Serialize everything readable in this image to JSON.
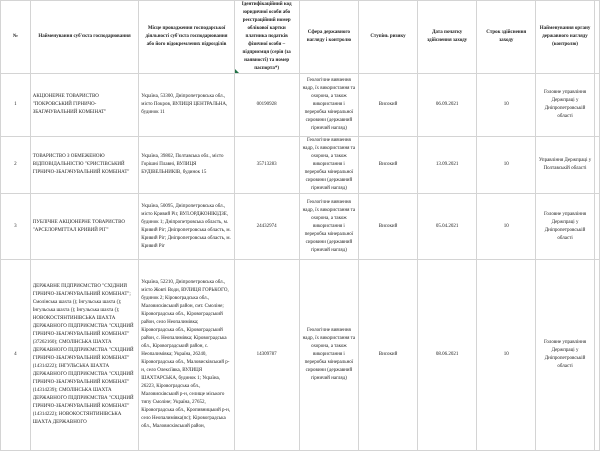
{
  "headers": {
    "num": "№",
    "name": "Найменування суб'єкта господарювання",
    "place": "Місце провадження господарської діяльності суб'єкта господарювання або його відокремлених підрозділів",
    "code": "Ідентифікаційний код юридичної особи або реєстраційний номер облікової картки платника податків фізичної особи – підприємця (серія (за наявності) та номер паспорта*)",
    "sphere": "Сфера державного нагляду і контролю",
    "risk": "Ступінь ризику",
    "date": "Дата початку здійснення заходу",
    "term": "Строк здійснення заходу",
    "authority": "Найменування органу державного нагляду (контролю)"
  },
  "rows": [
    {
      "num": "1",
      "name": "АКЦІОНЕРНЕ ТОВАРИСТВО \"ПОКРОВСЬКИЙ ГІРНИЧО-ЗБАГАЧУВАЛЬНИЙ КОМБІНАТ\"",
      "place": "Україна, 53300, Дніпропетровська обл., місто Покров, ВУЛИЦЯ ЦЕНТРАЛЬНА, будинок 11",
      "code": "00190928",
      "sphere": "Геологічне вивчення надр, їх використання та охорона, а також використання і переробка мінеральної сировини (державний гірничий нагляд)",
      "risk": "Високий",
      "date": "06.09.2021",
      "term": "10",
      "authority": "Головне управління Держпраці у Дніпропетровській області"
    },
    {
      "num": "2",
      "name": "ТОВАРИСТВО З ОБМЕЖЕНОЮ ВІДПОВІДАЛЬНІСТЮ \"ЄРИСТІВСЬКИЙ ГІРНИЧО-ЗБАГАЧУВАЛЬНИЙ КОМБІНАТ\"",
      "place": "Україна, 39802, Полтавська обл., місто Горішні Плавні, ВУЛИЦЯ БУДІВЕЛЬНИКІВ, будинок 15",
      "code": "35713283",
      "sphere": "Геологічне вивчення надр, їх використання та охорона, а також використання і переробка мінеральної сировини (державний гірничий нагляд)",
      "risk": "Високий",
      "date": "13.09.2021",
      "term": "10",
      "authority": "Управління Держпраці у Полтавській області"
    },
    {
      "num": "3",
      "name": "ПУБЛІЧНЕ АКЦІОНЕРНЕ ТОВАРИСТВО \"АРСЕЛОРМІТТАЛ КРИВИЙ РІГ\"",
      "place": "Україна, 50095, Дніпропетровська обл., місто Кривий Ріг, ВУЛ.ОРДЖОНІКІДЗЕ, будинок 1; Дніпропетровська область, м. Кривий Ріг; Дніпропетровська область, м. Кривий Ріг; Дніпропетровська область, м. Кривий Ріг",
      "code": "24432974",
      "sphere": "Геологічне вивчення надр, їх використання та охорона, а також використання і переробка мінеральної сировини (державний гірничий нагляд)",
      "risk": "Високий",
      "date": "05.04.2021",
      "term": "10",
      "authority": "Головне управління Держпраці у Дніпропетровській області"
    },
    {
      "num": "4",
      "name": "ДЕРЖАВНЕ ПІДПРИЄМСТВО \"СХІДНИЙ ГІРНИЧО-ЗБАГАЧУВАЛЬНИЙ КОМБІНАТ\"; Смолінська шахта (); Інгульська шахта (); Інгульська шахта (); Інгульська шахта (); НОВОКОСТЯНТИНІВСЬКА ШАХТА ДЕРЖАВНОГО ПІДПРИЄМСТВА \"СХІДНИЙ ГІРНИЧО-ЗБАГАЧУВАЛЬНИЙ КОМБІНАТ\" (37262160); СМОЛІНСЬКА ШАХТА ДЕРЖАВНОГО ПІДПРИЄМСТВА \"СХІДНИЙ ГІРНИЧО-ЗБАГАЧУВАЛЬНИЙ КОМБІНАТ\" (14314222); ІНГУЛЬСЬКА ШАХТА ДЕРЖАВНОГО ПІДПРИЄМСТВА \"СХІДНИЙ ГІРНИЧО-ЗБАГАЧУВАЛЬНИЙ КОМБІНАТ\" (14314239); СМОЛІНСЬКА ШАХТА ДЕРЖАВНОГО ПІДПРИЄМСТВА \"СХІДНИЙ ГІРНИЧО-ЗБАГАЧУВАЛЬНИЙ КОМБІНАТ\" (14314222); НОВОКОСТЯНТИНІВСЬКА ШАХТА ДЕРЖАВНОГО",
      "place": "Україна, 52210, Дніпропетровська обл., місто Жовті Води, ВУЛИЦЯ ГОРЬКОГО, будинок 2; Кіровоградська обл., Маловисківський район, смт. Смоліне; Кіровоградська обл., Кіровоградський район, село Неопалимівка; Кіровоградська обл., Кіровоградський район, с. Неопалимівка; Кіровоградська обл., Кіровоградський район, с. Неопалимівка; Україна, 26240, Кіровоградська обл., Маловисківський р-н, село Олексіївка, ВУЛИЦЯ ШАХТАРСЬКА, будинок 1; Україна, 26223, Кіровоградська обл., Маловисківський р-н, селище міського типу Смоліне; Україна, 27652, Кіровоградська обл., Кропивницький р-н, село Неопалимівка(пс); Кіровоградська обл., Маловисківський район,",
      "code": "14309787",
      "sphere": "Геологічне вивчення надр, їх використання та охорона, а також використання і переробка мінеральної сировини (державний гірничий нагляд)",
      "risk": "Високий",
      "date": "08.06.2021",
      "term": "10",
      "authority": "Головне управління Держпраці у Дніпропетровській області"
    }
  ]
}
